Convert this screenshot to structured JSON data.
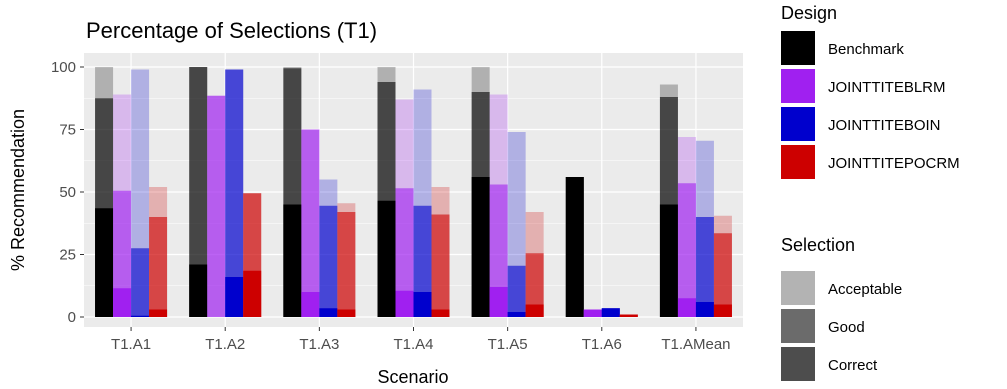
{
  "chart_data": {
    "type": "bar",
    "title": "Percentage of Selections (T1)",
    "xlabel": "Scenario",
    "ylabel": "% Recommendation",
    "ylim": [
      0,
      100
    ],
    "yticks": [
      0,
      25,
      50,
      75,
      100
    ],
    "grid": true,
    "categories": [
      "T1.A1",
      "T1.A2",
      "T1.A3",
      "T1.A4",
      "T1.A5",
      "T1.A6",
      "T1.AMean"
    ],
    "legends": [
      {
        "title": "Design",
        "placement": "right-top",
        "entries": [
          {
            "label": "Benchmark",
            "color": "#000000"
          },
          {
            "label": "JOINTTITEBLRM",
            "color": "#a020f0"
          },
          {
            "label": "JOINTTITEBOIN",
            "color": "#0000cd"
          },
          {
            "label": "JOINTTITEPOCRM",
            "color": "#cd0000"
          }
        ]
      },
      {
        "title": "Selection",
        "placement": "right-bottom",
        "entries": [
          {
            "label": "Acceptable",
            "color": "#b3b3b3"
          },
          {
            "label": "Good",
            "color": "#6b6b6b"
          },
          {
            "label": "Correct",
            "color": "#4d4d4d"
          }
        ]
      }
    ],
    "series": [
      {
        "name": "Benchmark",
        "color": "#000000",
        "acceptable": [
          100,
          100,
          100,
          100,
          100,
          56,
          93
        ],
        "good": [
          87.5,
          100,
          99.5,
          94,
          90,
          56,
          88
        ],
        "correct": [
          43.5,
          21,
          45,
          46.5,
          56,
          56,
          45
        ]
      },
      {
        "name": "JOINTTITEBLRM",
        "color": "#a020f0",
        "acceptable": [
          89,
          88.5,
          75,
          87,
          89,
          3,
          72
        ],
        "good": [
          50.5,
          88.5,
          75,
          51.5,
          53,
          3,
          53.5
        ],
        "correct": [
          11.5,
          0,
          10,
          10.5,
          12,
          3,
          7.5
        ]
      },
      {
        "name": "JOINTTITEBOIN",
        "color": "#0000cd",
        "acceptable": [
          99,
          99,
          55,
          91,
          74,
          3.5,
          70.5
        ],
        "good": [
          27.5,
          99,
          44.5,
          44.5,
          20.5,
          3.5,
          40
        ],
        "correct": [
          0.5,
          16,
          3.5,
          10,
          2,
          3.5,
          6
        ]
      },
      {
        "name": "JOINTTITEPOCRM",
        "color": "#cd0000",
        "acceptable": [
          52,
          49.5,
          45.5,
          52,
          42,
          1,
          40.5
        ],
        "good": [
          40,
          49.5,
          42,
          41,
          25.5,
          1,
          33.5
        ],
        "correct": [
          3,
          18.5,
          3,
          3,
          5,
          1,
          5
        ]
      }
    ]
  }
}
